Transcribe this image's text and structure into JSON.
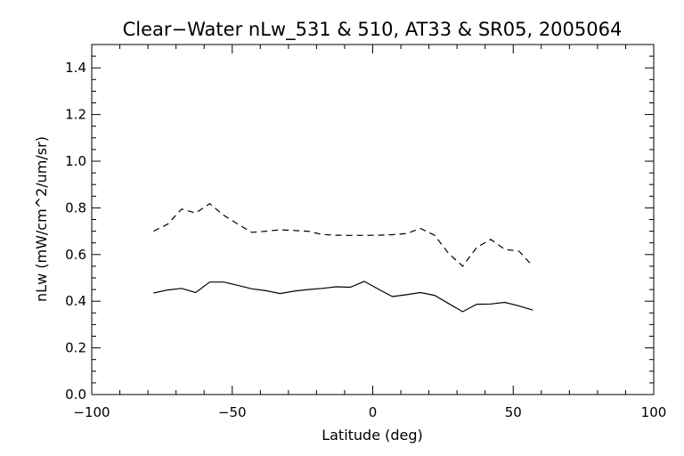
{
  "chart_data": {
    "type": "line",
    "title": "Clear−Water nLw_531 & 510, AT33 & SR05, 2005064",
    "xlabel": "Latitude (deg)",
    "ylabel": "nLw (mW/cm^2/um/sr)",
    "xlim": [
      -100,
      100
    ],
    "ylim": [
      0.0,
      1.5
    ],
    "xticks": [
      "−100",
      "−50",
      "0",
      "50",
      "100"
    ],
    "yticks": [
      "0.0",
      "0.2",
      "0.4",
      "0.6",
      "0.8",
      "1.0",
      "1.2",
      "1.4"
    ],
    "grid": false,
    "series": [
      {
        "style": "solid",
        "x": [
          -78,
          -73,
          -68,
          -63,
          -58,
          -53,
          -48,
          -43,
          -38,
          -33,
          -28,
          -23,
          -18,
          -13,
          -8,
          -3,
          2,
          7,
          12,
          17,
          22,
          27,
          32,
          37,
          42,
          47,
          52,
          57
        ],
        "y": [
          0.435,
          0.448,
          0.455,
          0.437,
          0.482,
          0.482,
          0.468,
          0.453,
          0.445,
          0.433,
          0.443,
          0.45,
          0.455,
          0.462,
          0.46,
          0.485,
          0.452,
          0.42,
          0.428,
          0.437,
          0.425,
          0.39,
          0.355,
          0.387,
          0.388,
          0.395,
          0.38,
          0.362
        ]
      },
      {
        "style": "dashed",
        "x": [
          -78,
          -73,
          -68,
          -63,
          -58,
          -53,
          -48,
          -43,
          -38,
          -33,
          -28,
          -23,
          -18,
          -13,
          -8,
          -3,
          2,
          7,
          12,
          17,
          22,
          27,
          32,
          37,
          42,
          47,
          52,
          57
        ],
        "y": [
          0.7,
          0.73,
          0.795,
          0.778,
          0.818,
          0.768,
          0.73,
          0.695,
          0.7,
          0.706,
          0.703,
          0.7,
          0.686,
          0.683,
          0.682,
          0.682,
          0.683,
          0.685,
          0.69,
          0.712,
          0.683,
          0.605,
          0.55,
          0.63,
          0.665,
          0.622,
          0.615,
          0.55
        ]
      }
    ]
  }
}
